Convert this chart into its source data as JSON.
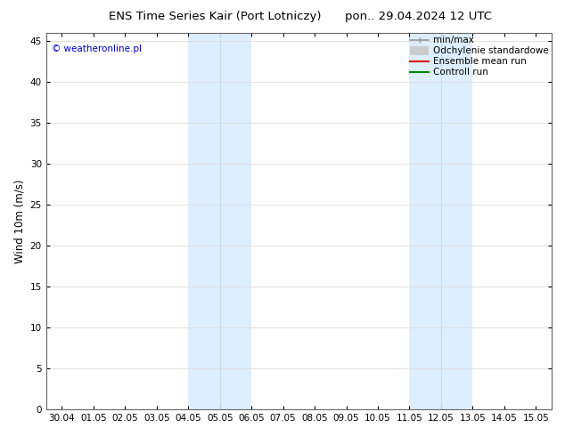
{
  "title_left": "ENS Time Series Kair (Port Lotniczy)",
  "title_right": "pon.. 29.04.2024 12 UTC",
  "ylabel": "Wind 10m (m/s)",
  "watermark": "© weatheronline.pl",
  "watermark_color": "#0000cc",
  "ylim": [
    0,
    46
  ],
  "yticks": [
    0,
    5,
    10,
    15,
    20,
    25,
    30,
    35,
    40,
    45
  ],
  "x_labels": [
    "30.04",
    "01.05",
    "02.05",
    "03.05",
    "04.05",
    "05.05",
    "06.05",
    "07.05",
    "08.05",
    "09.05",
    "10.05",
    "11.05",
    "12.05",
    "13.05",
    "14.05",
    "15.05"
  ],
  "background_color": "#ffffff",
  "plot_bg_color": "#ffffff",
  "shaded_bands": [
    {
      "start": 4.0,
      "end": 6.0
    },
    {
      "start": 11.0,
      "end": 13.0
    }
  ],
  "shaded_color": "#ddeeff",
  "shaded_line_color": "#c5ddf0",
  "legend_items": [
    {
      "label": "min/max",
      "color": "#999999",
      "lw": 1.2,
      "style": "minmax"
    },
    {
      "label": "Odchylenie standardowe",
      "color": "#cccccc",
      "lw": 7,
      "style": "band"
    },
    {
      "label": "Ensemble mean run",
      "color": "#dd0000",
      "lw": 1.5,
      "style": "line"
    },
    {
      "label": "Controll run",
      "color": "#008800",
      "lw": 1.5,
      "style": "line"
    }
  ],
  "grid_color": "#dddddd",
  "tick_label_fontsize": 7.5,
  "title_fontsize": 9.5,
  "ylabel_fontsize": 8.5,
  "legend_fontsize": 7.5
}
